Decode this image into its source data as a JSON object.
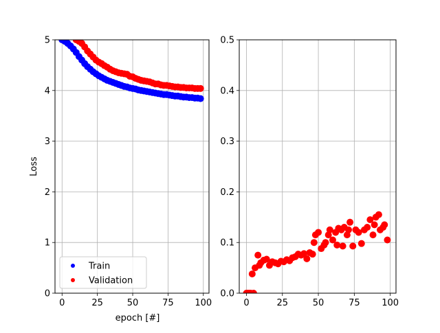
{
  "chart_data": [
    {
      "type": "scatter",
      "xlabel": "epoch [#]",
      "ylabel": "Loss",
      "xlim": [
        -5,
        104
      ],
      "ylim": [
        0,
        5
      ],
      "xticks": [
        "0",
        "25",
        "50",
        "75",
        "100"
      ],
      "yticks": [
        "0",
        "1",
        "2",
        "3",
        "4",
        "5"
      ],
      "grid": true,
      "legend": {
        "placement": "lower-left",
        "entries": [
          "Train",
          "Validation"
        ]
      },
      "series": [
        {
          "name": "Train",
          "color": "#0000ff",
          "points": [
            [
              0,
              5.0
            ],
            [
              2,
              4.97
            ],
            [
              4,
              4.93
            ],
            [
              6,
              4.88
            ],
            [
              8,
              4.82
            ],
            [
              10,
              4.75
            ],
            [
              12,
              4.67
            ],
            [
              14,
              4.6
            ],
            [
              16,
              4.53
            ],
            [
              18,
              4.47
            ],
            [
              20,
              4.42
            ],
            [
              22,
              4.37
            ],
            [
              24,
              4.33
            ],
            [
              26,
              4.29
            ],
            [
              28,
              4.26
            ],
            [
              30,
              4.23
            ],
            [
              32,
              4.2
            ],
            [
              34,
              4.18
            ],
            [
              36,
              4.16
            ],
            [
              38,
              4.14
            ],
            [
              40,
              4.12
            ],
            [
              42,
              4.1
            ],
            [
              44,
              4.08
            ],
            [
              46,
              4.07
            ],
            [
              48,
              4.05
            ],
            [
              50,
              4.04
            ],
            [
              52,
              4.03
            ],
            [
              54,
              4.01
            ],
            [
              56,
              4.0
            ],
            [
              58,
              3.99
            ],
            [
              60,
              3.98
            ],
            [
              62,
              3.97
            ],
            [
              64,
              3.96
            ],
            [
              66,
              3.95
            ],
            [
              68,
              3.94
            ],
            [
              70,
              3.93
            ],
            [
              72,
              3.92
            ],
            [
              74,
              3.92
            ],
            [
              76,
              3.91
            ],
            [
              78,
              3.9
            ],
            [
              80,
              3.89
            ],
            [
              82,
              3.89
            ],
            [
              84,
              3.88
            ],
            [
              86,
              3.87
            ],
            [
              88,
              3.87
            ],
            [
              90,
              3.86
            ],
            [
              92,
              3.86
            ],
            [
              94,
              3.85
            ],
            [
              96,
              3.85
            ],
            [
              98,
              3.84
            ]
          ]
        },
        {
          "name": "Validation",
          "color": "#ff0000",
          "points": [
            [
              10,
              5.0
            ],
            [
              12,
              4.97
            ],
            [
              14,
              4.93
            ],
            [
              16,
              4.86
            ],
            [
              18,
              4.78
            ],
            [
              20,
              4.72
            ],
            [
              22,
              4.66
            ],
            [
              24,
              4.6
            ],
            [
              26,
              4.56
            ],
            [
              28,
              4.53
            ],
            [
              30,
              4.49
            ],
            [
              32,
              4.46
            ],
            [
              34,
              4.42
            ],
            [
              36,
              4.39
            ],
            [
              38,
              4.37
            ],
            [
              40,
              4.35
            ],
            [
              42,
              4.34
            ],
            [
              44,
              4.33
            ],
            [
              46,
              4.32
            ],
            [
              48,
              4.28
            ],
            [
              50,
              4.27
            ],
            [
              52,
              4.24
            ],
            [
              54,
              4.22
            ],
            [
              56,
              4.2
            ],
            [
              58,
              4.19
            ],
            [
              60,
              4.18
            ],
            [
              62,
              4.17
            ],
            [
              64,
              4.15
            ],
            [
              66,
              4.13
            ],
            [
              68,
              4.13
            ],
            [
              70,
              4.11
            ],
            [
              72,
              4.1
            ],
            [
              74,
              4.1
            ],
            [
              76,
              4.09
            ],
            [
              78,
              4.08
            ],
            [
              80,
              4.07
            ],
            [
              82,
              4.07
            ],
            [
              84,
              4.06
            ],
            [
              86,
              4.06
            ],
            [
              88,
              4.05
            ],
            [
              90,
              4.05
            ],
            [
              92,
              4.05
            ],
            [
              94,
              4.04
            ],
            [
              96,
              4.04
            ],
            [
              98,
              4.04
            ]
          ]
        }
      ]
    },
    {
      "type": "scatter",
      "xlabel": "",
      "ylabel": "",
      "xlim": [
        -5,
        104
      ],
      "ylim": [
        0,
        0.5
      ],
      "xticks": [
        "0",
        "25",
        "50",
        "75",
        "100"
      ],
      "yticks": [
        "0.0",
        "0.1",
        "0.2",
        "0.3",
        "0.4",
        "0.5"
      ],
      "grid": true,
      "series": [
        {
          "color": "#ff0000",
          "points": [
            [
              0,
              0.0
            ],
            [
              1,
              0.0
            ],
            [
              2,
              0.0
            ],
            [
              3,
              0.0
            ],
            [
              4,
              0.038
            ],
            [
              5,
              0.0
            ],
            [
              6,
              0.05
            ],
            [
              8,
              0.075
            ],
            [
              9,
              0.055
            ],
            [
              10,
              0.06
            ],
            [
              12,
              0.065
            ],
            [
              14,
              0.067
            ],
            [
              16,
              0.055
            ],
            [
              18,
              0.062
            ],
            [
              20,
              0.06
            ],
            [
              22,
              0.058
            ],
            [
              24,
              0.063
            ],
            [
              26,
              0.062
            ],
            [
              28,
              0.066
            ],
            [
              30,
              0.064
            ],
            [
              32,
              0.07
            ],
            [
              34,
              0.072
            ],
            [
              36,
              0.077
            ],
            [
              38,
              0.075
            ],
            [
              40,
              0.078
            ],
            [
              42,
              0.068
            ],
            [
              44,
              0.08
            ],
            [
              46,
              0.077
            ],
            [
              47,
              0.1
            ],
            [
              48,
              0.115
            ],
            [
              50,
              0.12
            ],
            [
              52,
              0.088
            ],
            [
              54,
              0.095
            ],
            [
              55,
              0.1
            ],
            [
              57,
              0.115
            ],
            [
              58,
              0.125
            ],
            [
              60,
              0.105
            ],
            [
              62,
              0.12
            ],
            [
              63,
              0.095
            ],
            [
              64,
              0.128
            ],
            [
              66,
              0.125
            ],
            [
              67,
              0.093
            ],
            [
              68,
              0.13
            ],
            [
              70,
              0.115
            ],
            [
              71,
              0.125
            ],
            [
              72,
              0.14
            ],
            [
              74,
              0.093
            ],
            [
              76,
              0.125
            ],
            [
              78,
              0.12
            ],
            [
              80,
              0.098
            ],
            [
              82,
              0.125
            ],
            [
              84,
              0.13
            ],
            [
              86,
              0.145
            ],
            [
              88,
              0.115
            ],
            [
              89,
              0.135
            ],
            [
              90,
              0.15
            ],
            [
              92,
              0.155
            ],
            [
              93,
              0.125
            ],
            [
              95,
              0.13
            ],
            [
              96,
              0.135
            ],
            [
              98,
              0.105
            ]
          ]
        }
      ]
    }
  ]
}
